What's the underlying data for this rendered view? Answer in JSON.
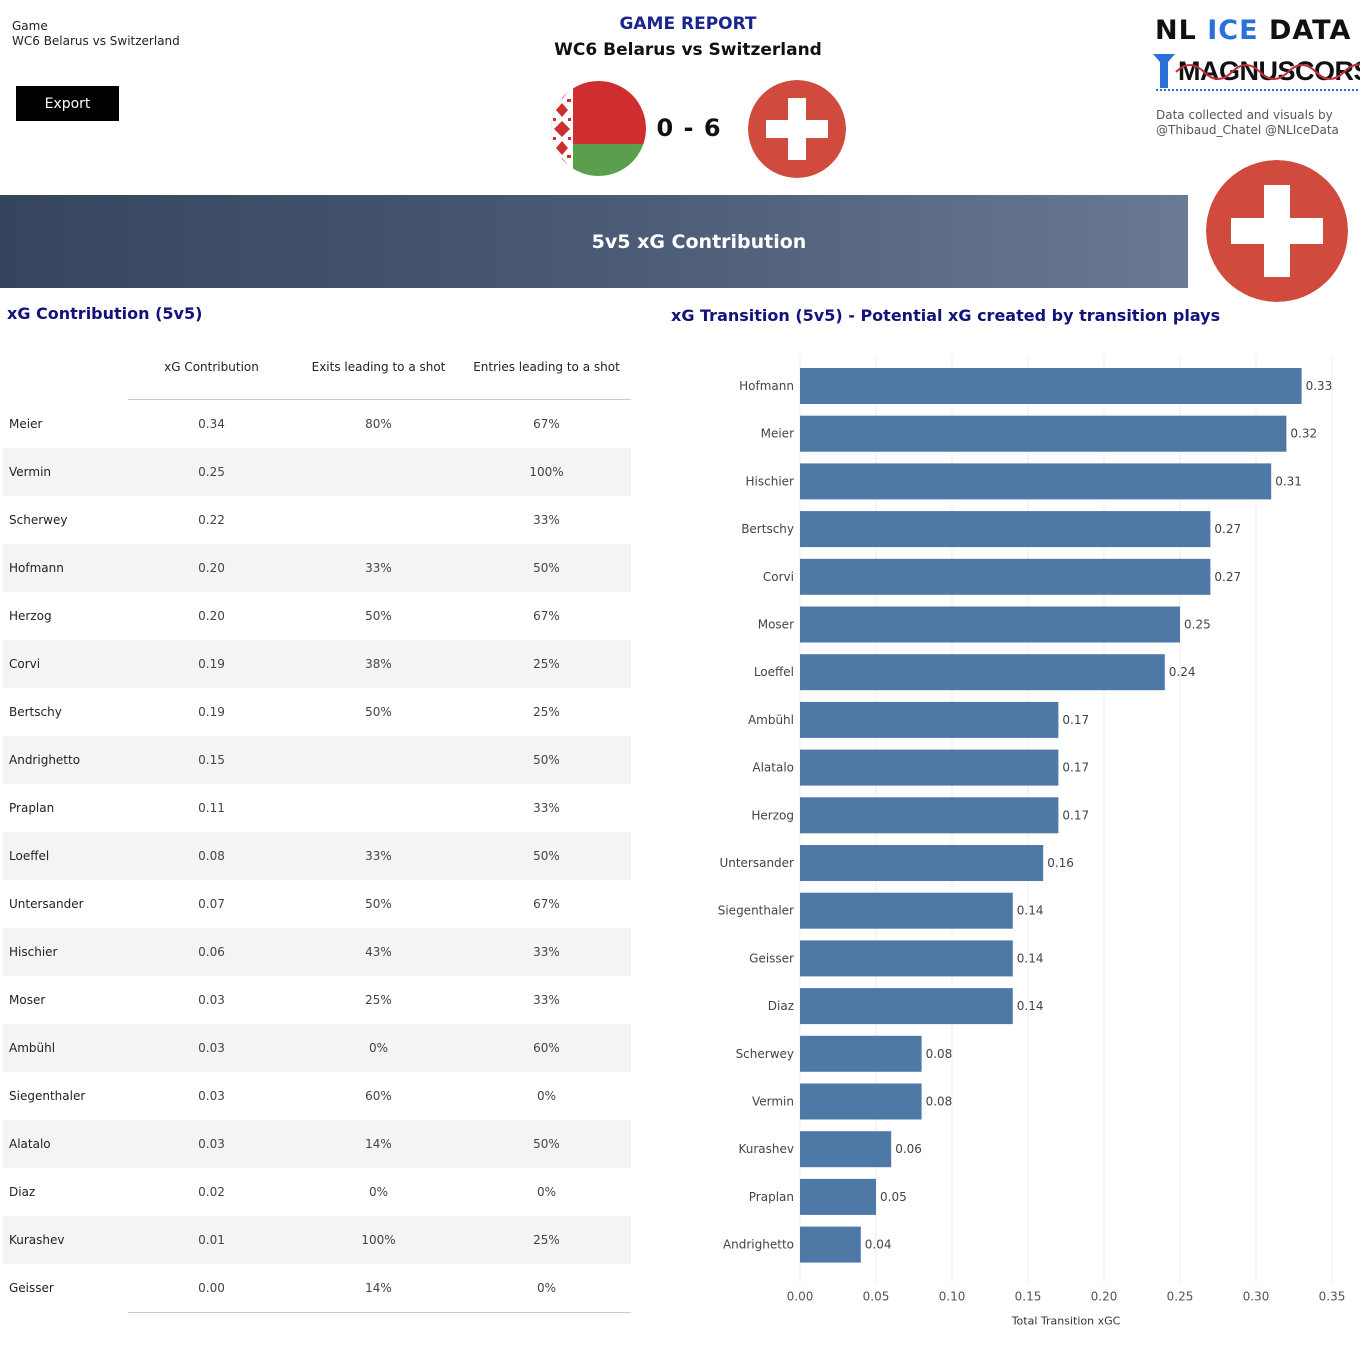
{
  "filter": {
    "label": "Game",
    "value": "WC6 Belarus vs Switzerland"
  },
  "export_label": "Export",
  "report": {
    "title": "GAME REPORT",
    "subtitle": "WC6 Belarus vs Switzerland",
    "score": "0 - 6"
  },
  "logo": {
    "part1": "NL",
    "part2": "ICE",
    "part3": "DATA",
    "sub": "MAGNUSCORSI"
  },
  "credits": {
    "line1": "Data collected and visuals by",
    "line2": "@Thibaud_Chatel @NLIceData"
  },
  "banner_title": "5v5 xG Contribution",
  "colors": {
    "bar": "#4e79a7",
    "title": "#12127a",
    "report_title": "#1a2490",
    "swiss_red": "#d04b3e"
  },
  "table": {
    "title": "xG Contribution (5v5)",
    "headers": [
      "xG Contribution",
      "Exits leading to a shot",
      "Entries leading to a shot"
    ],
    "rows": [
      [
        "Meier",
        "0.34",
        "80%",
        "67%"
      ],
      [
        "Vermin",
        "0.25",
        "",
        "100%"
      ],
      [
        "Scherwey",
        "0.22",
        "",
        "33%"
      ],
      [
        "Hofmann",
        "0.20",
        "33%",
        "50%"
      ],
      [
        "Herzog",
        "0.20",
        "50%",
        "67%"
      ],
      [
        "Corvi",
        "0.19",
        "38%",
        "25%"
      ],
      [
        "Bertschy",
        "0.19",
        "50%",
        "25%"
      ],
      [
        "Andrighetto",
        "0.15",
        "",
        "50%"
      ],
      [
        "Praplan",
        "0.11",
        "",
        "33%"
      ],
      [
        "Loeffel",
        "0.08",
        "33%",
        "50%"
      ],
      [
        "Untersander",
        "0.07",
        "50%",
        "67%"
      ],
      [
        "Hischier",
        "0.06",
        "43%",
        "33%"
      ],
      [
        "Moser",
        "0.03",
        "25%",
        "33%"
      ],
      [
        "Ambühl",
        "0.03",
        "0%",
        "60%"
      ],
      [
        "Siegenthaler",
        "0.03",
        "60%",
        "0%"
      ],
      [
        "Alatalo",
        "0.03",
        "14%",
        "50%"
      ],
      [
        "Diaz",
        "0.02",
        "0%",
        "0%"
      ],
      [
        "Kurashev",
        "0.01",
        "100%",
        "25%"
      ],
      [
        "Geisser",
        "0.00",
        "14%",
        "0%"
      ]
    ]
  },
  "chart_data": {
    "type": "bar",
    "orientation": "horizontal",
    "title": "xG Transition (5v5) - Potential xG created by transition plays",
    "xlabel": "Total Transition xGC",
    "ylabel": "",
    "xlim": [
      0,
      0.35
    ],
    "xticks": [
      "0.00",
      "0.05",
      "0.10",
      "0.15",
      "0.20",
      "0.25",
      "0.30",
      "0.35"
    ],
    "grid": true,
    "categories": [
      "Hofmann",
      "Meier",
      "Hischier",
      "Bertschy",
      "Corvi",
      "Moser",
      "Loeffel",
      "Ambühl",
      "Alatalo",
      "Herzog",
      "Untersander",
      "Siegenthaler",
      "Geisser",
      "Diaz",
      "Scherwey",
      "Vermin",
      "Kurashev",
      "Praplan",
      "Andrighetto"
    ],
    "values": [
      0.33,
      0.32,
      0.31,
      0.27,
      0.27,
      0.25,
      0.24,
      0.17,
      0.17,
      0.17,
      0.16,
      0.14,
      0.14,
      0.14,
      0.08,
      0.08,
      0.06,
      0.05,
      0.04
    ],
    "labels": [
      "0.33",
      "0.32",
      "0.31",
      "0.27",
      "0.27",
      "0.25",
      "0.24",
      "0.17",
      "0.17",
      "0.17",
      "0.16",
      "0.14",
      "0.14",
      "0.14",
      "0.08",
      "0.08",
      "0.06",
      "0.05",
      "0.04"
    ]
  }
}
